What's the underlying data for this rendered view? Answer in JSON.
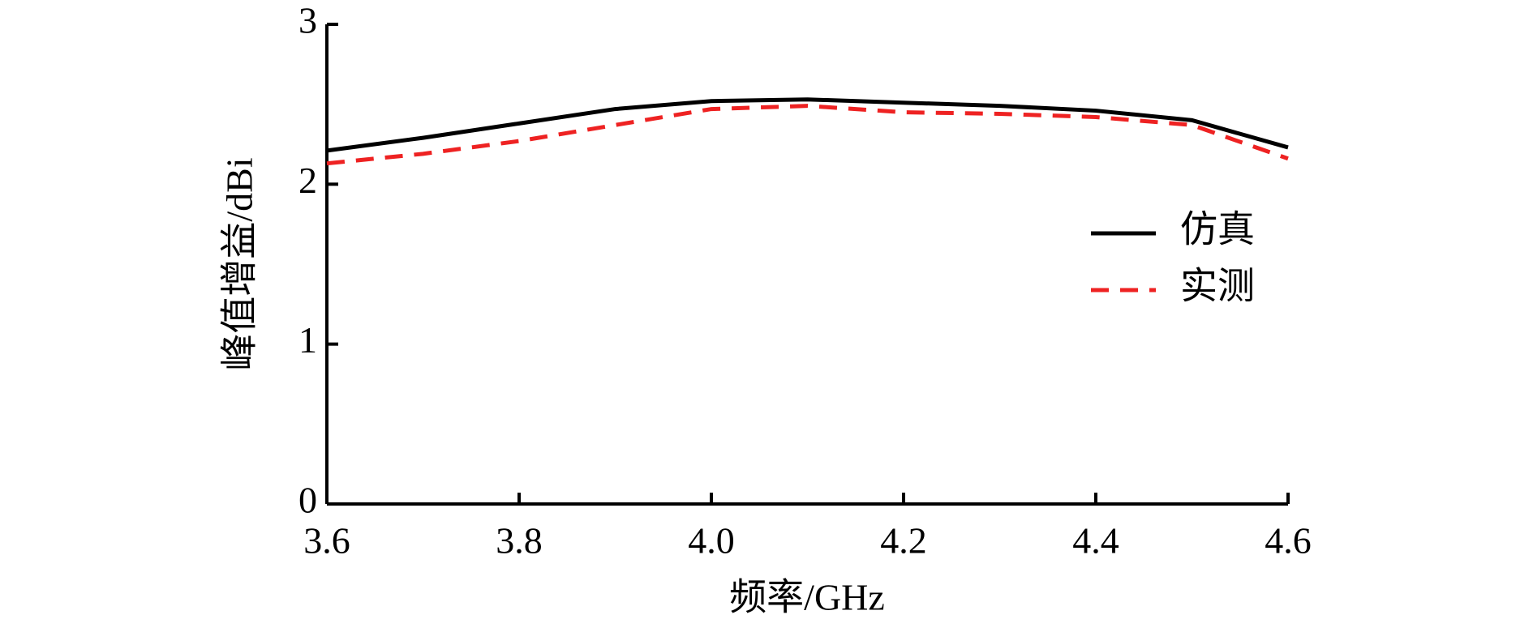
{
  "chart_data": {
    "type": "line",
    "x_label": "频率/GHz",
    "y_label": "峰值增益/dBi",
    "x": [
      3.6,
      3.7,
      3.8,
      3.9,
      4.0,
      4.1,
      4.2,
      4.3,
      4.4,
      4.5,
      4.6
    ],
    "series": [
      {
        "name": "仿真",
        "color": "#000000",
        "dash": false,
        "values": [
          2.21,
          2.29,
          2.38,
          2.47,
          2.52,
          2.53,
          2.51,
          2.49,
          2.46,
          2.4,
          2.23
        ]
      },
      {
        "name": "实测",
        "color": "#ee2222",
        "dash": true,
        "values": [
          2.13,
          2.19,
          2.27,
          2.37,
          2.47,
          2.49,
          2.45,
          2.44,
          2.42,
          2.37,
          2.16
        ]
      }
    ],
    "xlim": [
      3.6,
      4.6
    ],
    "xticks": [
      3.6,
      3.8,
      {
        "value": 4,
        "label": "4.0"
      },
      4.2,
      4.4,
      4.6
    ],
    "ylim": [
      0,
      3
    ],
    "yticks": [
      0,
      1,
      2,
      3
    ],
    "legend": "right",
    "grid": false
  }
}
